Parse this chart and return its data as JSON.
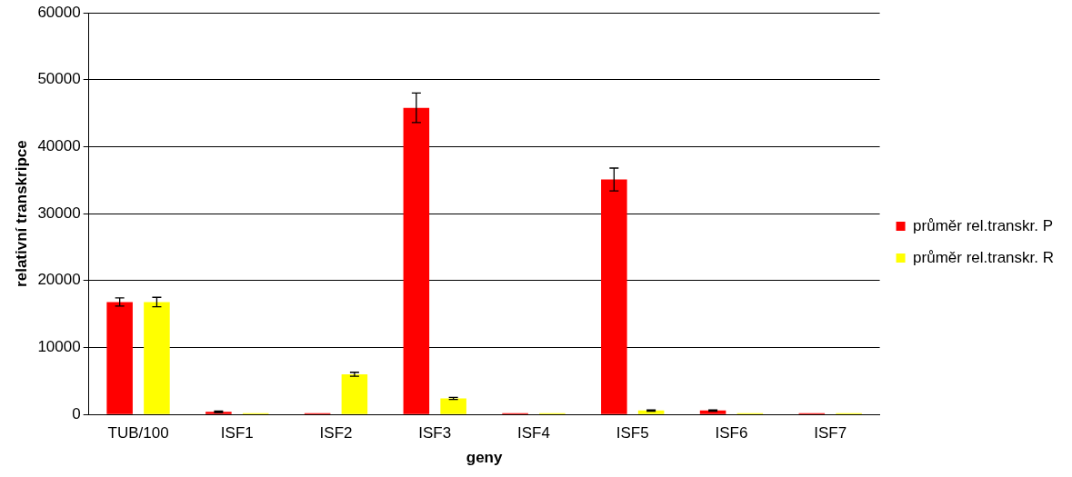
{
  "chart_data": {
    "type": "bar",
    "xlabel": "geny",
    "ylabel": "relativní transkripce",
    "categories": [
      "TUB/100",
      "ISF1",
      "ISF2",
      "ISF3",
      "ISF4",
      "ISF5",
      "ISF6",
      "ISF7"
    ],
    "series": [
      {
        "name": "průměr rel.transkr. P",
        "color": "#ff0000",
        "values": [
          16800,
          400,
          200,
          45800,
          200,
          35100,
          600,
          200
        ],
        "errors": [
          600,
          100,
          null,
          2200,
          null,
          1700,
          100,
          null
        ]
      },
      {
        "name": "průměr rel.transkr. R",
        "color": "#ffff00",
        "values": [
          16800,
          200,
          6000,
          2400,
          200,
          600,
          200,
          200
        ],
        "errors": [
          700,
          null,
          300,
          150,
          null,
          100,
          null,
          null
        ]
      }
    ],
    "ylim": [
      0,
      60000
    ],
    "yticks": [
      0,
      10000,
      20000,
      30000,
      40000,
      50000,
      60000
    ],
    "grid": "y",
    "legend": "right"
  }
}
